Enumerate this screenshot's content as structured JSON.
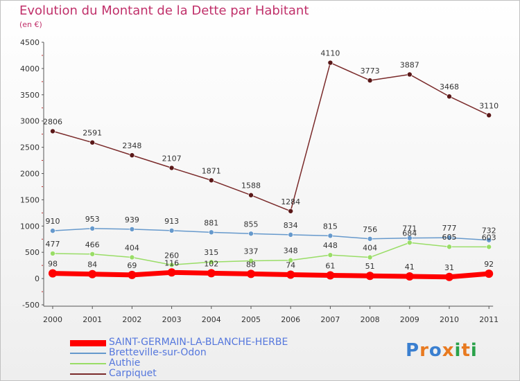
{
  "title": "Evolution du Montant de la Dette par Habitant",
  "unit": "(en €)",
  "logo": {
    "text": "Proxiti",
    "colors": [
      "#3a7fd0",
      "#e87a20",
      "#3a7fd0",
      "#e87a20",
      "#2aa24a",
      "#e87a20",
      "#2aa24a"
    ]
  },
  "chart_data": {
    "type": "line",
    "title": "Evolution du Montant de la Dette par Habitant",
    "ylabel": "(en €)",
    "x": [
      "2000",
      "2001",
      "2002",
      "2003",
      "2004",
      "2005",
      "2006",
      "2007",
      "2008",
      "2009",
      "2010",
      "2011"
    ],
    "ylim": [
      -500,
      4500
    ],
    "yticks": [
      -500,
      0,
      500,
      1000,
      1500,
      2000,
      2500,
      3000,
      3500,
      4000,
      4500
    ],
    "grid": false,
    "legend_position": "bottom-left",
    "series": [
      {
        "name": "SAINT-GERMAIN-LA-BLANCHE-HERBE",
        "color": "#ff0000",
        "values": [
          98,
          84,
          69,
          116,
          102,
          88,
          74,
          61,
          51,
          41,
          31,
          92
        ]
      },
      {
        "name": "Bretteville-sur-Odon",
        "color": "#6699cc",
        "values": [
          910,
          953,
          939,
          913,
          881,
          855,
          834,
          815,
          756,
          771,
          777,
          732
        ]
      },
      {
        "name": "Authie",
        "color": "#99dd66",
        "values": [
          477,
          466,
          404,
          260,
          315,
          337,
          348,
          448,
          404,
          684,
          605,
          603
        ]
      },
      {
        "name": "Carpiquet",
        "color": "#7a2a2a",
        "values": [
          2806,
          2591,
          2348,
          2107,
          1871,
          1588,
          1284,
          4110,
          3773,
          3887,
          3468,
          3110
        ]
      }
    ]
  }
}
